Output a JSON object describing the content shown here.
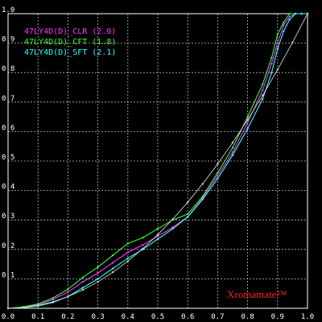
{
  "chart_data": {
    "type": "line",
    "title": "",
    "xlabel": "",
    "ylabel": "",
    "xlim": [
      0,
      1
    ],
    "ylim": [
      0,
      1
    ],
    "grid": true,
    "legend_position": "top-left",
    "x_ticks": [
      "0.0",
      "0.1",
      "0.2",
      "0.3",
      "0.4",
      "0.5",
      "0.6",
      "0.7",
      "0.8",
      "0.9",
      "1.0"
    ],
    "y_ticks": [
      "0.1",
      "0.2",
      "0.3",
      "0.4",
      "0.5",
      "0.6",
      "0.7",
      "0.8",
      "0.9",
      "1.0"
    ],
    "x_tick_values": [
      0,
      0.1,
      0.2,
      0.3,
      0.4,
      0.5,
      0.6,
      0.7,
      0.8,
      0.9,
      1.0
    ],
    "y_tick_values": [
      0.1,
      0.2,
      0.3,
      0.4,
      0.5,
      0.6,
      0.7,
      0.8,
      0.9,
      1.0
    ],
    "series": [
      {
        "name": "47LY4D(D)_CLR (2.0)",
        "color": "#ff33ff",
        "x": [
          0,
          0.05,
          0.1,
          0.15,
          0.2,
          0.25,
          0.3,
          0.35,
          0.4,
          0.45,
          0.5,
          0.55,
          0.6,
          0.65,
          0.7,
          0.75,
          0.8,
          0.85,
          0.88,
          0.9,
          0.92,
          0.94,
          0.96,
          0.98,
          1.0
        ],
        "y": [
          0,
          0.003,
          0.012,
          0.03,
          0.055,
          0.09,
          0.12,
          0.155,
          0.19,
          0.215,
          0.245,
          0.275,
          0.31,
          0.375,
          0.45,
          0.53,
          0.63,
          0.74,
          0.83,
          0.9,
          0.96,
          0.99,
          1.0,
          1.0,
          1.0
        ]
      },
      {
        "name": "47LY4D(D)_CFT (1.8)",
        "color": "#33ff33",
        "x": [
          0,
          0.05,
          0.1,
          0.15,
          0.2,
          0.25,
          0.3,
          0.35,
          0.4,
          0.45,
          0.5,
          0.55,
          0.6,
          0.65,
          0.7,
          0.75,
          0.8,
          0.85,
          0.88,
          0.9,
          0.92,
          0.94,
          0.96,
          0.98,
          1.0
        ],
        "y": [
          0,
          0.005,
          0.015,
          0.035,
          0.065,
          0.105,
          0.14,
          0.18,
          0.22,
          0.24,
          0.27,
          0.3,
          0.32,
          0.38,
          0.46,
          0.545,
          0.65,
          0.76,
          0.85,
          0.93,
          0.97,
          1.0,
          1.0,
          1.0,
          1.0
        ]
      },
      {
        "name": "47LY4D(D)_SFT (2.1)",
        "color": "#33ffff",
        "x": [
          0,
          0.05,
          0.1,
          0.15,
          0.2,
          0.25,
          0.3,
          0.35,
          0.4,
          0.45,
          0.5,
          0.55,
          0.6,
          0.65,
          0.7,
          0.75,
          0.8,
          0.85,
          0.88,
          0.9,
          0.92,
          0.94,
          0.96,
          0.98,
          1.0
        ],
        "y": [
          0,
          0.002,
          0.008,
          0.02,
          0.04,
          0.07,
          0.1,
          0.135,
          0.17,
          0.2,
          0.235,
          0.27,
          0.31,
          0.37,
          0.44,
          0.52,
          0.61,
          0.71,
          0.8,
          0.88,
          0.94,
          0.98,
          1.0,
          1.0,
          1.0
        ]
      },
      {
        "name": "",
        "color": "#cccccc",
        "x": [
          0,
          0.05,
          0.1,
          0.15,
          0.2,
          0.25,
          0.3,
          0.35,
          0.4,
          0.45,
          0.5,
          0.55,
          0.6,
          0.65,
          0.7,
          0.75,
          0.8,
          0.85,
          0.9,
          0.95,
          1.0
        ],
        "y": [
          0,
          0.0025,
          0.01,
          0.0225,
          0.04,
          0.0625,
          0.09,
          0.1225,
          0.16,
          0.2025,
          0.25,
          0.3025,
          0.36,
          0.4225,
          0.49,
          0.5625,
          0.64,
          0.7225,
          0.81,
          0.9025,
          1.0
        ]
      }
    ]
  },
  "watermark": "Xromamate™"
}
